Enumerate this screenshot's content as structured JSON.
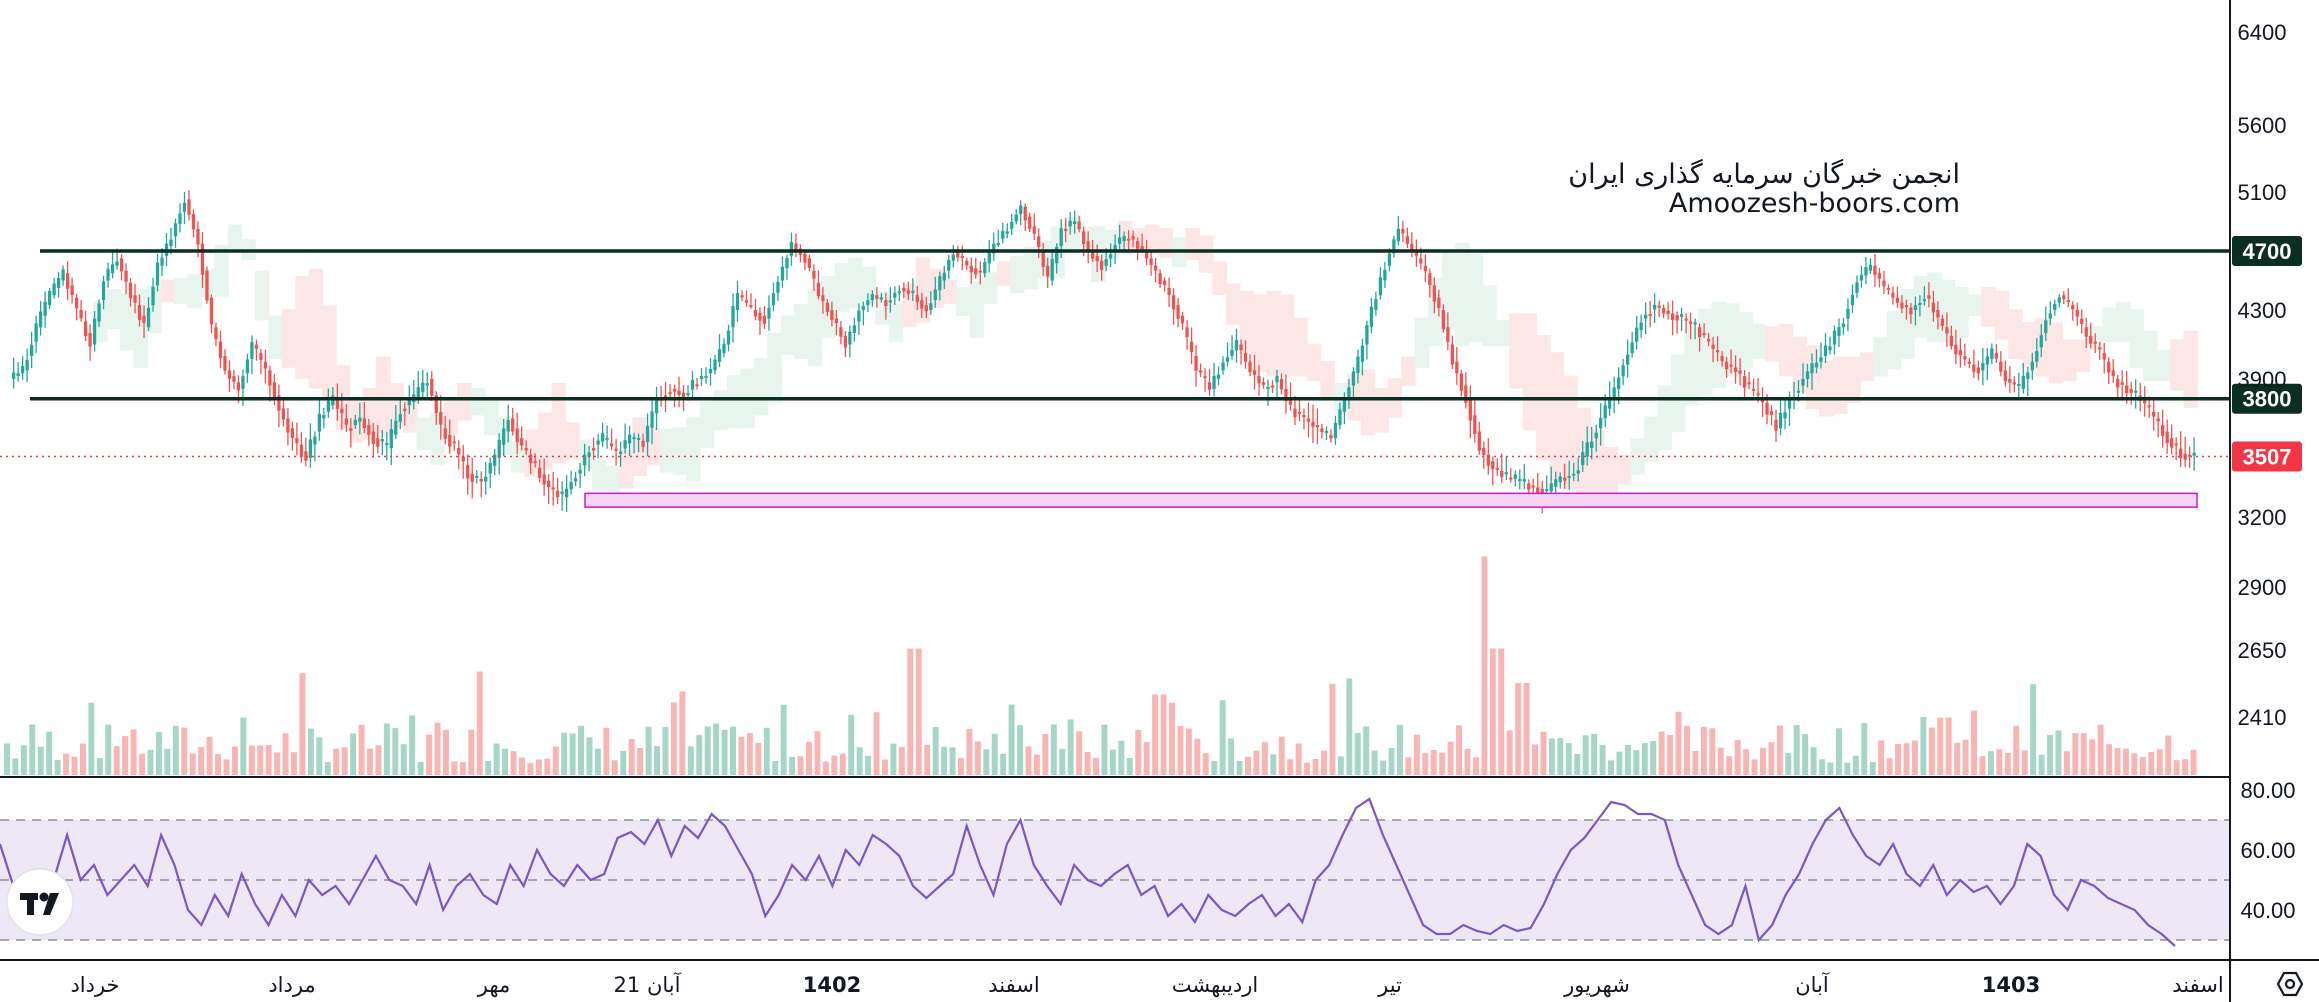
{
  "watermark": {
    "line1": "انجمن خبرگان سرمایه گذاری ایران",
    "line2": "Amoozesh-boors.com"
  },
  "logo": {
    "icon": "tradingview-logo-icon",
    "text": "TV"
  },
  "settings_icon": "gear-hexagon-icon",
  "colors": {
    "up": "#26a69a",
    "down": "#ef5350",
    "up_light": "#a5d6c7",
    "down_light": "#f8b5b3",
    "level_line": "#0b2e22",
    "last_price": "#f23645",
    "rsi": "#7e57c2",
    "rsi_band": "#ede7f6",
    "zone_fill": "#f6d2f3",
    "zone_border": "#c51fc3"
  },
  "chart_data": [
    {
      "type": "candlestick",
      "y_axis_ticks": [
        6400,
        5600,
        5100,
        4300,
        3900,
        3200,
        2900,
        2650,
        2410
      ],
      "ylim": [
        2300,
        6500
      ],
      "horizontal_levels": [
        4700,
        3800
      ],
      "last_price": 3507,
      "support_zone": [
        3250,
        3320
      ],
      "x_tick_labels": [
        "خرداد",
        "مرداد",
        "مهر",
        "21 آبان",
        "1402",
        "اسفند",
        "اردیبهشت",
        "تیر",
        "شهریور",
        "آبان",
        "1403",
        "اسفند"
      ],
      "bold_x_ticks": [
        "1402",
        "1403"
      ],
      "overlays": [
        "ichimoku-cloud",
        "volume"
      ],
      "close_series": [
        3950,
        4200,
        4400,
        4550,
        4300,
        4100,
        4500,
        4650,
        4400,
        4200,
        4600,
        4800,
        5050,
        4750,
        4200,
        3950,
        3850,
        4100,
        3950,
        3750,
        3600,
        3500,
        3700,
        3800,
        3650,
        3700,
        3600,
        3550,
        3750,
        3800,
        3900,
        3650,
        3550,
        3420,
        3380,
        3500,
        3700,
        3550,
        3450,
        3350,
        3300,
        3420,
        3550,
        3600,
        3520,
        3600,
        3580,
        3800,
        3850,
        3820,
        3900,
        3950,
        4100,
        4400,
        4300,
        4250,
        4500,
        4750,
        4650,
        4400,
        4250,
        4100,
        4300,
        4400,
        4350,
        4450,
        4400,
        4300,
        4500,
        4700,
        4600,
        4550,
        4750,
        4850,
        5000,
        4800,
        4500,
        4850,
        4900,
        4700,
        4600,
        4750,
        4800,
        4700,
        4550,
        4400,
        4200,
        3950,
        3850,
        4000,
        4100,
        3950,
        3850,
        3900,
        3750,
        3700,
        3650,
        3600,
        3800,
        4000,
        4300,
        4600,
        4850,
        4700,
        4550,
        4300,
        4000,
        3800,
        3550,
        3450,
        3400,
        3380,
        3350,
        3330,
        3400,
        3420,
        3550,
        3700,
        3850,
        4050,
        4250,
        4330,
        4280,
        4250,
        4200,
        4100,
        4000,
        3950,
        3850,
        3780,
        3650,
        3800,
        3900,
        4000,
        4100,
        4250,
        4500,
        4600,
        4450,
        4350,
        4300,
        4400,
        4250,
        4100,
        4000,
        3950,
        4050,
        3900,
        3850,
        4000,
        4250,
        4400,
        4300,
        4150,
        4050,
        3900,
        3850,
        3800,
        3700,
        3600,
        3520,
        3507
      ]
    },
    {
      "type": "line",
      "name": "RSI",
      "y_axis_ticks": [
        80.0,
        60.0,
        40.0
      ],
      "bands": [
        70,
        50,
        30
      ],
      "ylim": [
        23,
        85
      ],
      "values": [
        62,
        48,
        52,
        45,
        50,
        65,
        50,
        55,
        45,
        50,
        55,
        48,
        65,
        55,
        40,
        35,
        45,
        38,
        52,
        42,
        35,
        45,
        38,
        50,
        45,
        48,
        42,
        50,
        58,
        50,
        48,
        42,
        55,
        40,
        48,
        52,
        45,
        42,
        55,
        48,
        60,
        52,
        48,
        55,
        50,
        52,
        64,
        66,
        62,
        70,
        58,
        68,
        64,
        72,
        68,
        60,
        52,
        38,
        45,
        55,
        50,
        58,
        48,
        60,
        55,
        65,
        62,
        58,
        48,
        44,
        48,
        52,
        68,
        55,
        45,
        62,
        70,
        55,
        48,
        42,
        55,
        50,
        48,
        52,
        55,
        45,
        48,
        38,
        42,
        36,
        45,
        40,
        38,
        42,
        45,
        38,
        42,
        36,
        50,
        55,
        65,
        74,
        77,
        65,
        55,
        45,
        35,
        32,
        32,
        35,
        33,
        32,
        35,
        33,
        34,
        42,
        52,
        60,
        64,
        70,
        76,
        75,
        72,
        72,
        70,
        55,
        45,
        35,
        32,
        35,
        48,
        30,
        35,
        45,
        52,
        62,
        70,
        74,
        65,
        58,
        55,
        62,
        52,
        48,
        55,
        45,
        50,
        46,
        48,
        42,
        48,
        62,
        58,
        45,
        40,
        50,
        48,
        44,
        42,
        40,
        35,
        32,
        28
      ]
    }
  ]
}
